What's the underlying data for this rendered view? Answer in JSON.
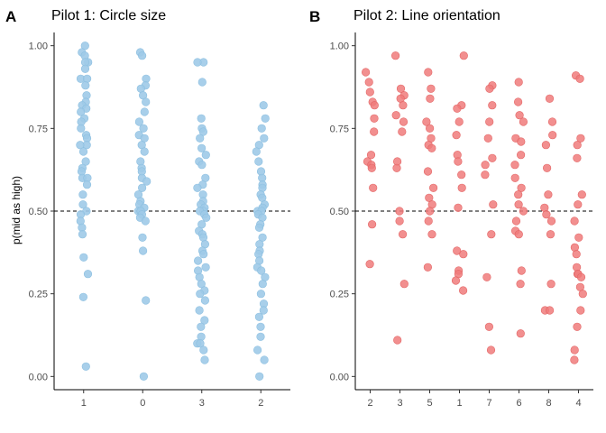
{
  "chart_data": [
    {
      "type": "scatter",
      "panel_label": "A",
      "title": "Pilot 1: Circle size",
      "xlabel": "",
      "ylabel": "p(mid as high)",
      "categories": [
        "1",
        "0",
        "3",
        "2"
      ],
      "ylim": [
        -0.04,
        1.04
      ],
      "yticks": [
        0.0,
        0.25,
        0.5,
        0.75,
        1.0
      ],
      "ytick_labels": [
        "0.00",
        "0.25",
        "0.50",
        "0.75",
        "1.00"
      ],
      "reference_line": 0.5,
      "grid": false,
      "color": "#9ecae8",
      "points": {
        "1": [
          1.0,
          0.98,
          0.97,
          0.95,
          0.95,
          0.93,
          0.9,
          0.9,
          0.88,
          0.85,
          0.83,
          0.82,
          0.81,
          0.8,
          0.78,
          0.77,
          0.75,
          0.73,
          0.72,
          0.7,
          0.7,
          0.68,
          0.65,
          0.63,
          0.62,
          0.6,
          0.6,
          0.58,
          0.55,
          0.52,
          0.5,
          0.49,
          0.47,
          0.45,
          0.43,
          0.36,
          0.31,
          0.24,
          0.03
        ],
        "0": [
          0.98,
          0.97,
          0.9,
          0.88,
          0.87,
          0.85,
          0.83,
          0.8,
          0.77,
          0.75,
          0.73,
          0.72,
          0.7,
          0.68,
          0.65,
          0.63,
          0.62,
          0.6,
          0.59,
          0.57,
          0.55,
          0.53,
          0.52,
          0.51,
          0.5,
          0.5,
          0.5,
          0.49,
          0.48,
          0.47,
          0.42,
          0.38,
          0.23,
          0.0
        ],
        "3": [
          0.95,
          0.95,
          0.89,
          0.78,
          0.75,
          0.74,
          0.72,
          0.69,
          0.67,
          0.65,
          0.64,
          0.6,
          0.58,
          0.57,
          0.55,
          0.53,
          0.52,
          0.51,
          0.5,
          0.5,
          0.49,
          0.48,
          0.46,
          0.44,
          0.43,
          0.42,
          0.4,
          0.38,
          0.37,
          0.35,
          0.33,
          0.32,
          0.3,
          0.28,
          0.26,
          0.25,
          0.23,
          0.2,
          0.17,
          0.15,
          0.12,
          0.1,
          0.1,
          0.08,
          0.05
        ],
        "2": [
          0.82,
          0.78,
          0.75,
          0.72,
          0.7,
          0.68,
          0.65,
          0.62,
          0.6,
          0.58,
          0.57,
          0.55,
          0.54,
          0.52,
          0.51,
          0.5,
          0.5,
          0.49,
          0.48,
          0.46,
          0.45,
          0.42,
          0.4,
          0.38,
          0.37,
          0.35,
          0.33,
          0.32,
          0.3,
          0.28,
          0.25,
          0.22,
          0.2,
          0.18,
          0.15,
          0.12,
          0.08,
          0.05,
          0.0
        ]
      }
    },
    {
      "type": "scatter",
      "panel_label": "B",
      "title": "Pilot 2: Line orientation",
      "xlabel": "",
      "ylabel": "",
      "categories": [
        "2",
        "3",
        "5",
        "1",
        "7",
        "6",
        "8",
        "4"
      ],
      "ylim": [
        -0.04,
        1.04
      ],
      "yticks": [
        0.0,
        0.25,
        0.5,
        0.75,
        1.0
      ],
      "ytick_labels": [
        "0.00",
        "0.25",
        "0.50",
        "0.75",
        "1.00"
      ],
      "reference_line": 0.5,
      "grid": false,
      "color": "#f07b7b",
      "points": {
        "2": [
          0.92,
          0.89,
          0.86,
          0.83,
          0.82,
          0.78,
          0.74,
          0.67,
          0.65,
          0.64,
          0.63,
          0.57,
          0.46,
          0.34
        ],
        "3": [
          0.97,
          0.87,
          0.85,
          0.84,
          0.82,
          0.79,
          0.77,
          0.74,
          0.65,
          0.63,
          0.5,
          0.47,
          0.43,
          0.28,
          0.11
        ],
        "5": [
          0.92,
          0.87,
          0.84,
          0.77,
          0.75,
          0.72,
          0.7,
          0.69,
          0.62,
          0.57,
          0.54,
          0.52,
          0.5,
          0.47,
          0.43,
          0.33
        ],
        "1": [
          0.97,
          0.82,
          0.81,
          0.77,
          0.73,
          0.67,
          0.65,
          0.61,
          0.57,
          0.51,
          0.38,
          0.37,
          0.32,
          0.31,
          0.29,
          0.26
        ],
        "7": [
          0.88,
          0.87,
          0.82,
          0.77,
          0.72,
          0.66,
          0.64,
          0.61,
          0.52,
          0.43,
          0.3,
          0.15,
          0.08
        ],
        "6": [
          0.89,
          0.83,
          0.79,
          0.77,
          0.72,
          0.71,
          0.67,
          0.64,
          0.6,
          0.57,
          0.55,
          0.52,
          0.5,
          0.47,
          0.44,
          0.43,
          0.32,
          0.28,
          0.13
        ],
        "8": [
          0.84,
          0.77,
          0.73,
          0.7,
          0.63,
          0.55,
          0.51,
          0.49,
          0.47,
          0.43,
          0.28,
          0.2,
          0.2
        ],
        "4": [
          0.91,
          0.9,
          0.72,
          0.7,
          0.66,
          0.55,
          0.52,
          0.47,
          0.42,
          0.39,
          0.37,
          0.33,
          0.31,
          0.31,
          0.3,
          0.27,
          0.25,
          0.2,
          0.15,
          0.08,
          0.05
        ]
      }
    }
  ]
}
